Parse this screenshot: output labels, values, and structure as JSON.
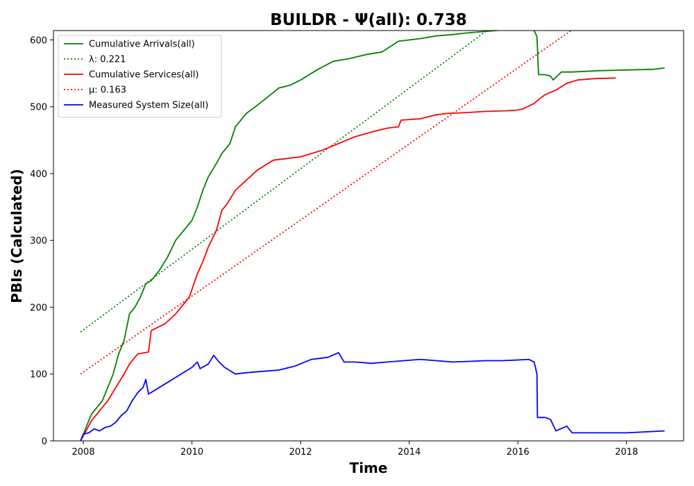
{
  "chart_data": {
    "type": "line",
    "title": "BUILDR -  Ψ(all): 0.738",
    "xlabel": "Time",
    "ylabel": "PBIs (Calculated)",
    "xlim": [
      2007.45,
      2019.05
    ],
    "ylim": [
      0,
      614
    ],
    "xticks": [
      2008,
      2010,
      2012,
      2014,
      2016,
      2018
    ],
    "yticks": [
      0,
      100,
      200,
      300,
      400,
      500,
      600
    ],
    "grid": false,
    "legend_position": "top-left",
    "series": [
      {
        "name": "Cumulative Arrivals(all)",
        "color": "#008000",
        "style": "solid",
        "x": [
          2007.95,
          2008.05,
          2008.15,
          2008.25,
          2008.35,
          2008.45,
          2008.55,
          2008.65,
          2008.75,
          2008.85,
          2008.95,
          2009.05,
          2009.15,
          2009.25,
          2009.4,
          2009.55,
          2009.7,
          2009.85,
          2010.0,
          2010.1,
          2010.2,
          2010.3,
          2010.45,
          2010.55,
          2010.7,
          2010.8,
          2010.9,
          2011.0,
          2011.2,
          2011.4,
          2011.6,
          2011.8,
          2012.0,
          2012.3,
          2012.6,
          2012.9,
          2013.2,
          2013.5,
          2013.8,
          2014.0,
          2014.2,
          2014.5,
          2014.8,
          2015.0,
          2015.3,
          2015.6,
          2015.9,
          2016.1,
          2016.3,
          2016.35,
          2016.38,
          2016.5,
          2016.6,
          2016.65,
          2016.8,
          2017.0,
          2017.5,
          2018.0,
          2018.5,
          2018.7
        ],
        "y": [
          0,
          20,
          40,
          50,
          60,
          80,
          100,
          130,
          150,
          190,
          200,
          215,
          235,
          240,
          255,
          275,
          300,
          315,
          330,
          350,
          375,
          395,
          415,
          430,
          445,
          470,
          480,
          490,
          502,
          515,
          528,
          532,
          540,
          555,
          568,
          572,
          578,
          582,
          598,
          600,
          602,
          606,
          608,
          610,
          612,
          614,
          616,
          616,
          614,
          605,
          548,
          548,
          546,
          540,
          552,
          552,
          554,
          555,
          556,
          558
        ]
      },
      {
        "name": "λ: 0.221",
        "color": "#008000",
        "style": "dotted",
        "x": [
          2007.95,
          2015.43
        ],
        "y": [
          163,
          614
        ]
      },
      {
        "name": "Cumulative Services(all)",
        "color": "#ff0000",
        "style": "solid",
        "x": [
          2007.95,
          2008.05,
          2008.15,
          2008.3,
          2008.45,
          2008.6,
          2008.75,
          2008.85,
          2009.0,
          2009.2,
          2009.25,
          2009.5,
          2009.7,
          2009.8,
          2009.95,
          2010.1,
          2010.2,
          2010.3,
          2010.45,
          2010.55,
          2010.65,
          2010.8,
          2011.0,
          2011.2,
          2011.5,
          2011.8,
          2012.0,
          2012.4,
          2012.7,
          2013.0,
          2013.3,
          2013.6,
          2013.8,
          2013.85,
          2014.2,
          2014.5,
          2014.7,
          2015.0,
          2015.4,
          2015.8,
          2016.0,
          2016.1,
          2016.3,
          2016.4,
          2016.5,
          2016.7,
          2016.9,
          2017.1,
          2017.4,
          2017.8
        ],
        "y": [
          0,
          15,
          30,
          45,
          60,
          80,
          100,
          115,
          130,
          133,
          165,
          175,
          190,
          200,
          215,
          250,
          268,
          290,
          315,
          345,
          355,
          375,
          390,
          405,
          420,
          423,
          425,
          435,
          445,
          455,
          462,
          468,
          470,
          480,
          482,
          488,
          490,
          491,
          493,
          494,
          495,
          497,
          505,
          512,
          518,
          525,
          535,
          540,
          542,
          543
        ]
      },
      {
        "name": "μ: 0.163",
        "color": "#ff0000",
        "style": "dotted",
        "x": [
          2007.95,
          2016.98
        ],
        "y": [
          100,
          614
        ]
      },
      {
        "name": "Measured System Size(all)",
        "color": "#0000ff",
        "style": "solid",
        "x": [
          2007.95,
          2008.0,
          2008.1,
          2008.2,
          2008.3,
          2008.4,
          2008.5,
          2008.6,
          2008.7,
          2008.8,
          2008.9,
          2009.0,
          2009.1,
          2009.15,
          2009.2,
          2009.3,
          2009.5,
          2009.7,
          2009.9,
          2010.0,
          2010.1,
          2010.15,
          2010.3,
          2010.4,
          2010.5,
          2010.6,
          2010.7,
          2010.8,
          2011.0,
          2011.3,
          2011.6,
          2011.9,
          2012.2,
          2012.5,
          2012.7,
          2012.8,
          2013.0,
          2013.3,
          2013.6,
          2013.9,
          2014.2,
          2014.5,
          2014.8,
          2015.1,
          2015.4,
          2015.7,
          2016.0,
          2016.2,
          2016.3,
          2016.35,
          2016.36,
          2016.5,
          2016.6,
          2016.7,
          2016.9,
          2017.0,
          2017.5,
          2018.0,
          2018.7
        ],
        "y": [
          0,
          10,
          12,
          18,
          15,
          20,
          22,
          28,
          38,
          45,
          60,
          72,
          80,
          92,
          70,
          75,
          85,
          95,
          105,
          110,
          118,
          108,
          115,
          128,
          118,
          110,
          105,
          100,
          102,
          104,
          106,
          112,
          122,
          125,
          132,
          118,
          118,
          116,
          118,
          120,
          122,
          120,
          118,
          119,
          120,
          120,
          121,
          122,
          118,
          100,
          35,
          35,
          32,
          15,
          22,
          12,
          12,
          12,
          15
        ]
      }
    ]
  }
}
